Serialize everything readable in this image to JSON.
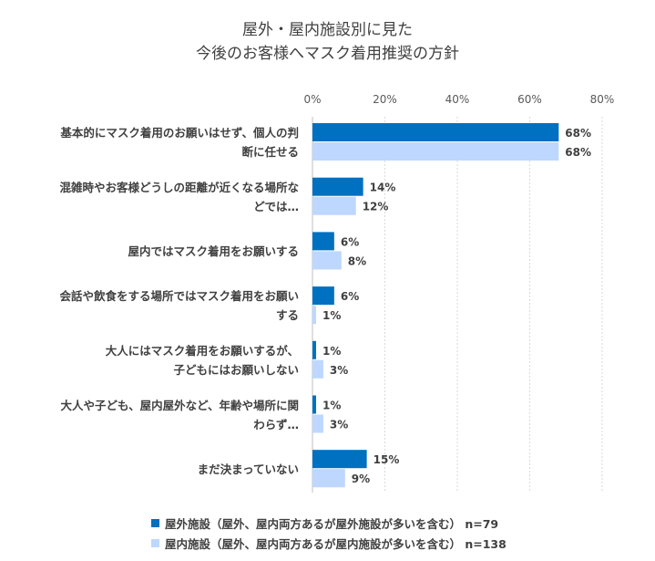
{
  "chart_data": {
    "type": "bar",
    "orientation": "horizontal",
    "title_lines": [
      "屋外・屋内施設別に見た",
      "今後のお客様へマスク着用推奨の方針"
    ],
    "x_ticks": [
      "0%",
      "20%",
      "40%",
      "60%",
      "80%"
    ],
    "xlim": [
      0,
      80
    ],
    "grid": true,
    "legend_position": "bottom",
    "categories": [
      [
        "基本的にマスク着用のお願いはせず、個人の判",
        "断に任せる"
      ],
      [
        "混雑時やお客様どうしの距離が近くなる場所な",
        "どでは…"
      ],
      [
        "屋内ではマスク着用をお願いする"
      ],
      [
        "会話や飲食をする場所ではマスク着用をお願い",
        "する"
      ],
      [
        "大人にはマスク着用をお願いするが、",
        "子どもにはお願いしない"
      ],
      [
        "大人や子ども、屋内屋外など、年齢や場所に関",
        "わらず…"
      ],
      [
        "まだ決まっていない"
      ]
    ],
    "series": [
      {
        "name": "屋外施設（屋外、屋内両方あるが屋外施設が多いを含む） n=79",
        "color": "#0070c0",
        "values": [
          68,
          14,
          6,
          6,
          1,
          1,
          15
        ],
        "labels": [
          "68%",
          "14%",
          "6%",
          "6%",
          "1%",
          "1%",
          "15%"
        ]
      },
      {
        "name": "屋内施設（屋外、屋内両方あるが屋内施設が多いを含む） n=138",
        "color": "#bdd7ff",
        "values": [
          68,
          12,
          8,
          1,
          3,
          3,
          9
        ],
        "labels": [
          "68%",
          "12%",
          "8%",
          "1%",
          "3%",
          "3%",
          "9%"
        ]
      }
    ]
  }
}
